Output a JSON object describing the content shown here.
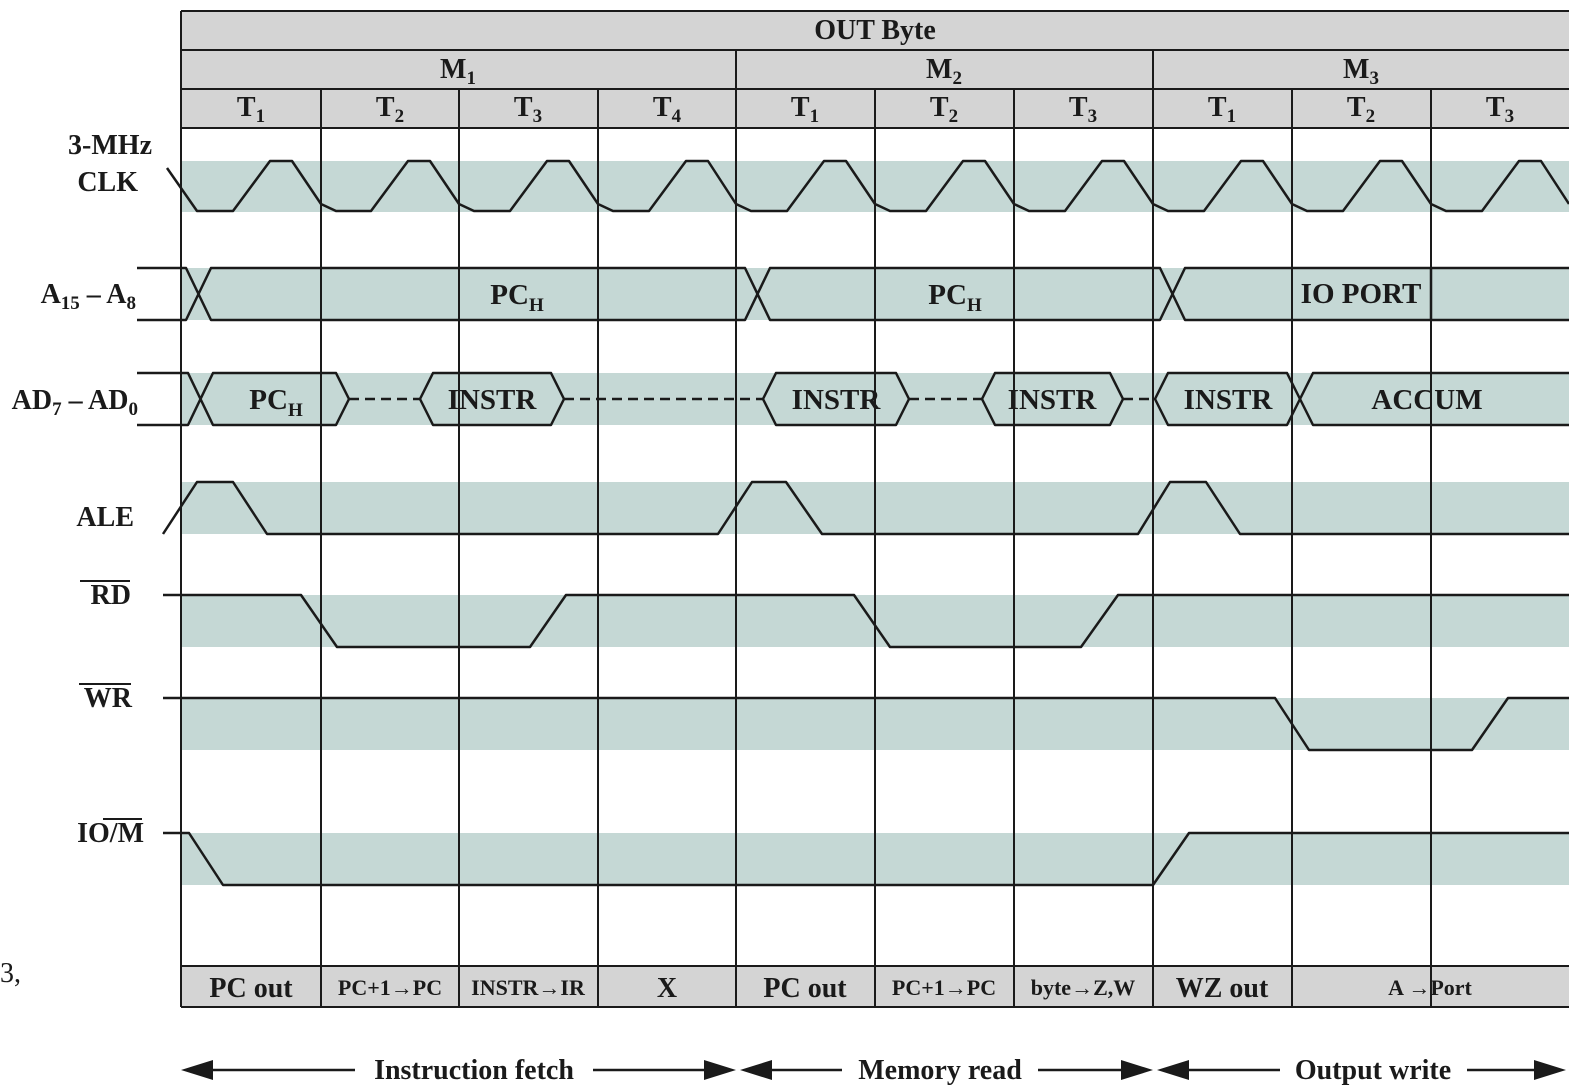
{
  "title": "OUT Byte",
  "machine_cycles": [
    {
      "name": "M",
      "sub": "1"
    },
    {
      "name": "M",
      "sub": "2"
    },
    {
      "name": "M",
      "sub": "3"
    }
  ],
  "states": [
    {
      "name": "T",
      "sub": "1"
    },
    {
      "name": "T",
      "sub": "2"
    },
    {
      "name": "T",
      "sub": "3"
    },
    {
      "name": "T",
      "sub": "4"
    },
    {
      "name": "T",
      "sub": "1"
    },
    {
      "name": "T",
      "sub": "2"
    },
    {
      "name": "T",
      "sub": "3"
    },
    {
      "name": "T",
      "sub": "1"
    },
    {
      "name": "T",
      "sub": "2"
    },
    {
      "name": "T",
      "sub": "3"
    }
  ],
  "signals": {
    "clk_line1": "3-MHz",
    "clk_line2": "CLK",
    "addr_hi": {
      "a": "A",
      "a_sub": "15",
      "dash": " – ",
      "b": "A",
      "b_sub": "8"
    },
    "addr_lo": {
      "a": "AD",
      "a_sub": "7",
      "dash": " – ",
      "b": "AD",
      "b_sub": "0"
    },
    "ale": "ALE",
    "rd": "RD",
    "wr": "WR",
    "iom_io": "IO/",
    "iom_m": "M"
  },
  "bus_values": {
    "pch_main": "PC",
    "pch_sub": "H",
    "io_port": "IO PORT",
    "instr": "INSTR",
    "accum": "ACCUM"
  },
  "operations": [
    "PC out",
    "PC+1→PC",
    "INSTR→IR",
    "X",
    "PC out",
    "PC+1→PC",
    "byte→Z,W",
    "WZ out",
    "A →Port"
  ],
  "phases": [
    "Instruction fetch",
    "Memory read",
    "Output write"
  ],
  "edge_fragment": "3,",
  "colors": {
    "band": "#c5d8d5",
    "header": "#d4d4d4",
    "line": "#1a1a1a"
  }
}
